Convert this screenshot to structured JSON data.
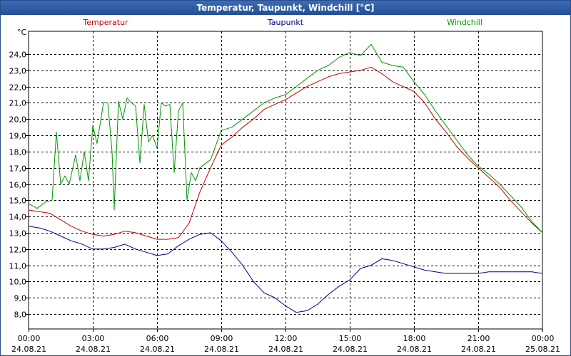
{
  "window": {
    "title": "Temperatur, Taupunkt, Windchill [°C]"
  },
  "chart_data": {
    "type": "line",
    "title": "Temperatur, Taupunkt, Windchill [°C]",
    "ylabel": "°C",
    "xlabel": "",
    "ylim": [
      7.0,
      25.5
    ],
    "xlim": [
      0,
      24
    ],
    "yticks": [
      8.0,
      9.0,
      10.0,
      11.0,
      12.0,
      13.0,
      14.0,
      15.0,
      16.0,
      17.0,
      18.0,
      19.0,
      20.0,
      21.0,
      22.0,
      23.0,
      24.0
    ],
    "ytick_labels": [
      "8,0",
      "9,0",
      "10,0",
      "11,0",
      "12,0",
      "13,0",
      "14,0",
      "15,0",
      "16,0",
      "17,0",
      "18,0",
      "19,0",
      "20,0",
      "21,0",
      "22,0",
      "23,0",
      "24,0"
    ],
    "xticks": [
      {
        "x": 0,
        "time": "00:00",
        "date": "24.08.21"
      },
      {
        "x": 3,
        "time": "03:00",
        "date": "24.08.21"
      },
      {
        "x": 6,
        "time": "06:00",
        "date": "24.08.21"
      },
      {
        "x": 9,
        "time": "09:00",
        "date": "24.08.21"
      },
      {
        "x": 12,
        "time": "12:00",
        "date": "24.08.21"
      },
      {
        "x": 15,
        "time": "15:00",
        "date": "24.08.21"
      },
      {
        "x": 18,
        "time": "18:00",
        "date": "24.08.21"
      },
      {
        "x": 21,
        "time": "21:00",
        "date": "24.08.21"
      },
      {
        "x": 24,
        "time": "00:00",
        "date": "25.08.21"
      }
    ],
    "grid": true,
    "series": [
      {
        "name": "Temperatur",
        "color": "#cc0000",
        "points": [
          [
            0,
            14.4
          ],
          [
            0.5,
            14.3
          ],
          [
            1,
            14.2
          ],
          [
            1.5,
            13.8
          ],
          [
            2,
            13.4
          ],
          [
            2.5,
            13.1
          ],
          [
            3,
            12.9
          ],
          [
            3.5,
            12.8
          ],
          [
            4,
            12.9
          ],
          [
            4.5,
            13.1
          ],
          [
            5,
            13.0
          ],
          [
            5.5,
            12.8
          ],
          [
            6,
            12.6
          ],
          [
            6.5,
            12.6
          ],
          [
            7,
            12.7
          ],
          [
            7.5,
            13.6
          ],
          [
            8,
            15.5
          ],
          [
            8.5,
            17.0
          ],
          [
            9,
            18.4
          ],
          [
            9.5,
            18.9
          ],
          [
            10,
            19.5
          ],
          [
            10.5,
            20.0
          ],
          [
            11,
            20.6
          ],
          [
            11.5,
            20.9
          ],
          [
            12,
            21.2
          ],
          [
            12.5,
            21.6
          ],
          [
            13,
            22.0
          ],
          [
            13.5,
            22.3
          ],
          [
            14,
            22.6
          ],
          [
            14.5,
            22.8
          ],
          [
            15,
            22.9
          ],
          [
            15.5,
            23.0
          ],
          [
            16,
            23.2
          ],
          [
            16.5,
            22.8
          ],
          [
            17,
            22.3
          ],
          [
            17.5,
            22.0
          ],
          [
            18,
            21.7
          ],
          [
            18.5,
            21.0
          ],
          [
            19,
            20.0
          ],
          [
            19.5,
            19.2
          ],
          [
            20,
            18.3
          ],
          [
            20.5,
            17.6
          ],
          [
            21,
            17.0
          ],
          [
            21.5,
            16.4
          ],
          [
            22,
            15.8
          ],
          [
            22.5,
            15.0
          ],
          [
            23,
            14.3
          ],
          [
            23.5,
            13.6
          ],
          [
            24,
            13.0
          ]
        ]
      },
      {
        "name": "Taupunkt",
        "color": "#00008b",
        "points": [
          [
            0,
            13.4
          ],
          [
            0.5,
            13.3
          ],
          [
            1,
            13.1
          ],
          [
            1.5,
            12.8
          ],
          [
            2,
            12.5
          ],
          [
            2.5,
            12.3
          ],
          [
            3,
            12.0
          ],
          [
            3.5,
            12.0
          ],
          [
            4,
            12.1
          ],
          [
            4.5,
            12.3
          ],
          [
            5,
            12.0
          ],
          [
            5.5,
            11.8
          ],
          [
            6,
            11.6
          ],
          [
            6.5,
            11.7
          ],
          [
            7,
            12.2
          ],
          [
            7.5,
            12.6
          ],
          [
            8,
            12.9
          ],
          [
            8.5,
            13.0
          ],
          [
            9,
            12.5
          ],
          [
            9.5,
            11.8
          ],
          [
            10,
            11.0
          ],
          [
            10.5,
            10.0
          ],
          [
            11,
            9.3
          ],
          [
            11.5,
            9.0
          ],
          [
            12,
            8.5
          ],
          [
            12.5,
            8.1
          ],
          [
            13,
            8.2
          ],
          [
            13.5,
            8.6
          ],
          [
            14,
            9.2
          ],
          [
            14.5,
            9.7
          ],
          [
            15,
            10.1
          ],
          [
            15.5,
            10.8
          ],
          [
            16,
            11.0
          ],
          [
            16.5,
            11.4
          ],
          [
            17,
            11.3
          ],
          [
            17.5,
            11.1
          ],
          [
            18,
            10.9
          ],
          [
            18.5,
            10.7
          ],
          [
            19,
            10.6
          ],
          [
            19.5,
            10.5
          ],
          [
            20,
            10.5
          ],
          [
            20.5,
            10.5
          ],
          [
            21,
            10.5
          ],
          [
            21.5,
            10.6
          ],
          [
            22,
            10.6
          ],
          [
            22.5,
            10.6
          ],
          [
            23,
            10.6
          ],
          [
            23.5,
            10.6
          ],
          [
            24,
            10.5
          ]
        ]
      },
      {
        "name": "Windchill",
        "color": "#009900",
        "points": [
          [
            0,
            14.8
          ],
          [
            0.4,
            14.5
          ],
          [
            0.8,
            14.9
          ],
          [
            1.1,
            15.0
          ],
          [
            1.3,
            19.2
          ],
          [
            1.5,
            16.0
          ],
          [
            1.7,
            16.5
          ],
          [
            1.9,
            16.0
          ],
          [
            2.2,
            17.8
          ],
          [
            2.4,
            16.2
          ],
          [
            2.6,
            18.0
          ],
          [
            2.8,
            16.2
          ],
          [
            3.0,
            19.6
          ],
          [
            3.2,
            18.5
          ],
          [
            3.5,
            21.0
          ],
          [
            3.7,
            21.0
          ],
          [
            3.9,
            18.0
          ],
          [
            4.0,
            14.4
          ],
          [
            4.2,
            21.1
          ],
          [
            4.4,
            20.0
          ],
          [
            4.6,
            21.3
          ],
          [
            4.8,
            21.0
          ],
          [
            5.0,
            20.8
          ],
          [
            5.2,
            17.3
          ],
          [
            5.4,
            20.9
          ],
          [
            5.6,
            18.6
          ],
          [
            5.8,
            19.0
          ],
          [
            6.0,
            18.2
          ],
          [
            6.2,
            21.0
          ],
          [
            6.4,
            20.8
          ],
          [
            6.6,
            20.9
          ],
          [
            6.8,
            16.7
          ],
          [
            7.0,
            20.5
          ],
          [
            7.2,
            21.0
          ],
          [
            7.4,
            15.0
          ],
          [
            7.6,
            16.7
          ],
          [
            7.8,
            16.2
          ],
          [
            8.0,
            17.0
          ],
          [
            8.5,
            17.5
          ],
          [
            9,
            19.3
          ],
          [
            9.5,
            19.5
          ],
          [
            10,
            20.0
          ],
          [
            10.5,
            20.5
          ],
          [
            11,
            21.0
          ],
          [
            11.5,
            21.3
          ],
          [
            12,
            21.5
          ],
          [
            12.5,
            22.0
          ],
          [
            13,
            22.5
          ],
          [
            13.5,
            23.0
          ],
          [
            14,
            23.3
          ],
          [
            14.5,
            23.8
          ],
          [
            15,
            24.1
          ],
          [
            15.5,
            23.9
          ],
          [
            16,
            24.6
          ],
          [
            16.5,
            23.5
          ],
          [
            17,
            23.3
          ],
          [
            17.5,
            23.2
          ],
          [
            18,
            22.3
          ],
          [
            18.5,
            21.5
          ],
          [
            19,
            20.5
          ],
          [
            19.5,
            19.6
          ],
          [
            20,
            18.7
          ],
          [
            20.5,
            17.8
          ],
          [
            21,
            17.1
          ],
          [
            21.5,
            16.6
          ],
          [
            22,
            16.0
          ],
          [
            22.5,
            15.3
          ],
          [
            23,
            14.6
          ],
          [
            23.5,
            13.7
          ],
          [
            24,
            13.0
          ]
        ]
      }
    ]
  }
}
